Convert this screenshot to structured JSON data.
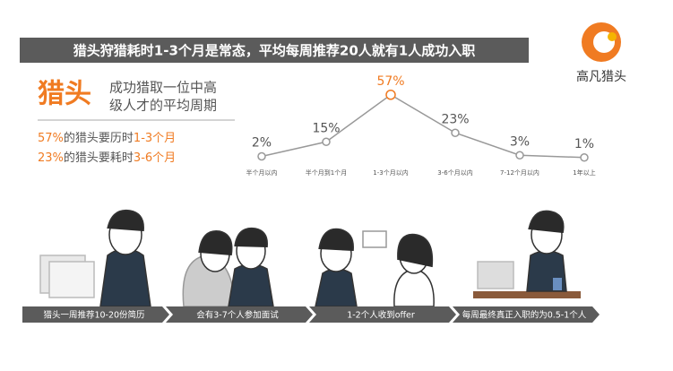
{
  "banner": "猎头狩猎耗时1-3个月是常态，平均每周推荐20人就有1人成功入职",
  "logo": "高凡猎头",
  "headline": {
    "big": "猎头",
    "lines": [
      "成功猎取一位中高",
      "级人才的平均周期"
    ]
  },
  "facts": [
    [
      {
        "text": "57%",
        "color": "#f07b22"
      },
      {
        "text": "的猎头要历时",
        "color": "#555555"
      },
      {
        "text": "1-3个月",
        "color": "#f07b22"
      }
    ],
    [
      {
        "text": "23%",
        "color": "#f07b22"
      },
      {
        "text": "的猎头要耗时",
        "color": "#555555"
      },
      {
        "text": "3-6个月",
        "color": "#f07b22"
      }
    ]
  ],
  "chart_data": {
    "type": "line",
    "categories": [
      "半个月以内",
      "半个月到1个月",
      "1-3个月以内",
      "3-6个月以内",
      "7-12个月以内",
      "1年以上"
    ],
    "series": [
      {
        "color": "#999999",
        "values": [
          2,
          15,
          57,
          23,
          3,
          1
        ],
        "value_labels": [
          "2%",
          "15%",
          "57%",
          "23%",
          "3%",
          "1%"
        ]
      }
    ],
    "highlight_color": "#f07b22"
  },
  "steps": [
    "猎头一周推荐10-20份简历",
    "会有3-7个人参加面试",
    "1-2个人收到offer",
    "每周最终真正入职的为0.5-1个人"
  ]
}
